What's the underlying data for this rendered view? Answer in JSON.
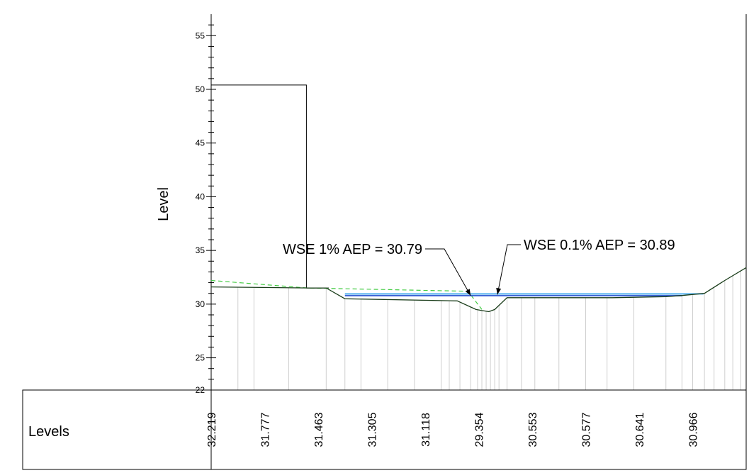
{
  "chart_data": {
    "type": "line",
    "title": "",
    "ylabel": "Level",
    "ylim": [
      22,
      57
    ],
    "yticks": [
      25,
      30,
      35,
      40,
      45,
      50,
      55
    ],
    "ytick_labels": [
      "25",
      "30",
      "35",
      "40",
      "45",
      "50",
      "55"
    ],
    "ymin_label": "22",
    "minor_tick_step": 1,
    "grid": false,
    "legend": "none",
    "xlim": [
      0,
      100
    ],
    "ground_profile": {
      "x": [
        0,
        18.5,
        21.5,
        25,
        46,
        49.5,
        50.6,
        51.9,
        53,
        55.3,
        56.6,
        65,
        75,
        85,
        88,
        92.2,
        96,
        100
      ],
      "y": [
        31.6,
        31.5,
        31.5,
        30.5,
        30.3,
        29.5,
        29.4,
        29.3,
        29.5,
        30.6,
        30.6,
        30.6,
        30.6,
        30.7,
        30.8,
        31.0,
        32.2,
        33.4
      ]
    },
    "wall_outline": {
      "x": [
        0,
        17.8,
        17.8,
        22
      ],
      "y": [
        50.4,
        50.4,
        31.5,
        31.5
      ]
    },
    "design_surface": {
      "x": [
        0,
        18,
        48,
        50.6
      ],
      "y": [
        32.2,
        31.5,
        31.2,
        29.5
      ]
    },
    "water_levels": [
      {
        "name": "WSE 1% AEP",
        "value": 30.79,
        "x": [
          25,
          88
        ],
        "color": "#3b63d6"
      },
      {
        "name": "WSE 0.1% AEP",
        "value": 30.89,
        "x": [
          25,
          92
        ],
        "color": "#58b4f0"
      }
    ],
    "annotations": [
      {
        "text": "WSE 1% AEP = 30.79",
        "target_x": 48.5,
        "target_y": 30.79
      },
      {
        "text": "WSE 0.1% AEP = 30.89",
        "target_x": 53.5,
        "target_y": 30.89
      }
    ],
    "station_x": [
      5,
      8,
      14.5,
      21.5,
      25,
      28,
      33,
      38,
      43,
      44.5,
      46.5,
      48.5,
      49.8,
      50.6,
      51.4,
      52.2,
      53,
      53.8,
      55.3,
      58,
      60.5,
      65,
      70,
      74,
      79,
      85,
      88,
      90,
      92.2,
      94,
      96,
      97.5,
      99
    ],
    "levels_row": {
      "title": "Levels",
      "values": [
        {
          "label": "32.219",
          "x": 0
        },
        {
          "label": "31.777",
          "x": 10
        },
        {
          "label": "31.463",
          "x": 20
        },
        {
          "label": "31.305",
          "x": 30
        },
        {
          "label": "31.118",
          "x": 40
        },
        {
          "label": "29.354",
          "x": 50
        },
        {
          "label": "30.553",
          "x": 60
        },
        {
          "label": "30.577",
          "x": 70
        },
        {
          "label": "30.641",
          "x": 80
        },
        {
          "label": "30.966",
          "x": 90
        }
      ]
    },
    "colors": {
      "ground": "#1a3d1a",
      "design_surface": "#44cc44",
      "stations": "#cfcfcf",
      "axis": "#000000"
    }
  }
}
